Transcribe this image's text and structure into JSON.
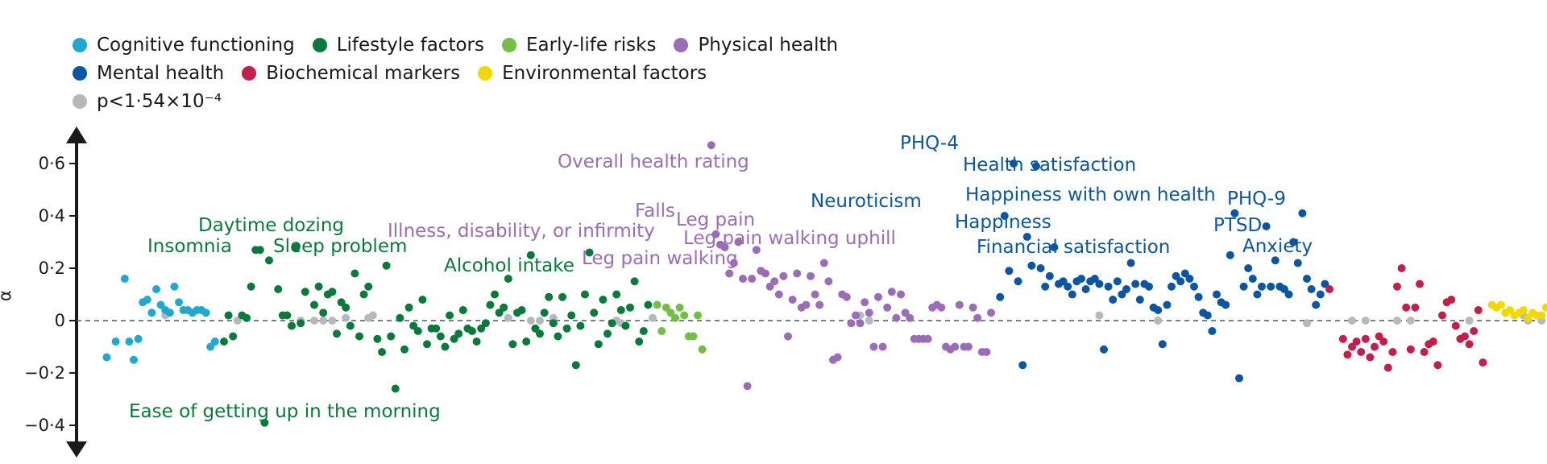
{
  "chart_data": {
    "type": "scatter",
    "title": "",
    "xlabel": "",
    "ylabel": "α",
    "ylim": [
      -0.46,
      0.72
    ],
    "yticks": [
      -0.4,
      -0.2,
      0,
      0.2,
      0.4,
      0.6
    ],
    "ytick_labels": [
      "−0·4",
      "−0·2",
      "0",
      "0·2",
      "0·4",
      "0·6"
    ],
    "reference_line": 0,
    "legend": [
      {
        "name": "Cognitive functioning",
        "color": "#1fa8d0"
      },
      {
        "name": "Lifestyle factors",
        "color": "#0a7a3b"
      },
      {
        "name": "Early-life risks",
        "color": "#72bf44"
      },
      {
        "name": "Physical health",
        "color": "#9b6cb7"
      },
      {
        "name": "Mental health",
        "color": "#0b56a4"
      },
      {
        "name": "Biochemical markers",
        "color": "#c41e4a"
      },
      {
        "name": "Environmental factors",
        "color": "#f0d800"
      },
      {
        "name": "p<1·54×10⁻⁴",
        "color": "#b6b9bc"
      }
    ],
    "series": [
      {
        "name": "Cognitive functioning",
        "color": "#1fa8d0",
        "x": [
          4,
          6,
          8,
          9,
          10,
          11,
          12,
          13,
          14,
          15,
          16,
          17,
          18,
          19,
          20,
          21,
          22,
          23,
          24,
          25,
          26,
          27,
          28
        ],
        "y": [
          -0.14,
          -0.08,
          0.16,
          -0.08,
          -0.15,
          -0.07,
          0.07,
          0.08,
          0.03,
          0.12,
          0.06,
          0.04,
          0.03,
          0.13,
          0.07,
          0.04,
          0.04,
          0.03,
          0.04,
          0.04,
          0.03,
          -0.1,
          -0.08
        ]
      },
      {
        "name": "Lifestyle factors",
        "color": "#0a7a3b",
        "x": [
          30,
          31,
          32,
          34,
          35,
          36,
          37,
          38,
          39,
          40,
          42,
          43,
          44,
          45,
          46,
          47,
          48,
          50,
          51,
          52,
          53,
          54,
          55,
          56,
          57,
          58,
          59,
          60,
          61,
          62,
          64,
          65,
          66,
          67,
          68,
          69,
          70,
          71,
          72,
          73,
          74,
          75,
          76,
          77,
          78,
          79,
          80,
          81,
          82,
          83,
          84,
          85,
          86,
          87,
          88,
          89,
          90,
          91,
          92,
          93,
          94,
          95,
          96,
          97,
          98,
          99,
          100,
          101,
          102,
          103,
          104,
          105,
          106,
          107,
          108,
          109,
          110,
          111,
          112,
          113,
          114,
          115,
          116,
          117,
          118,
          119,
          120,
          121,
          122,
          123,
          124
        ],
        "y": [
          -0.08,
          0.02,
          -0.06,
          0.02,
          0.01,
          0.13,
          0.27,
          0.27,
          -0.39,
          0.23,
          0.12,
          0.02,
          0.02,
          -0.02,
          0.28,
          -0.01,
          0.11,
          0.06,
          0.13,
          0.03,
          0.1,
          0.11,
          -0.05,
          0.07,
          0.05,
          -0.02,
          0.18,
          -0.06,
          0.1,
          0.13,
          -0.07,
          -0.12,
          0.21,
          -0.06,
          -0.26,
          0.01,
          -0.11,
          0.05,
          -0.02,
          -0.04,
          0.08,
          -0.09,
          -0.03,
          -0.03,
          -0.06,
          -0.1,
          0.02,
          -0.07,
          -0.05,
          0.04,
          -0.03,
          -0.04,
          -0.08,
          -0.03,
          -0.01,
          0.06,
          0.1,
          0.03,
          0.05,
          0.16,
          -0.09,
          0.03,
          0.04,
          -0.08,
          0.25,
          -0.03,
          -0.05,
          0.03,
          0.09,
          -0.01,
          -0.06,
          0.09,
          -0.03,
          0.02,
          -0.17,
          -0.02,
          0.1,
          0.26,
          0.03,
          -0.09,
          0.08,
          -0.05,
          -0.01,
          0.1,
          0.04,
          -0.02,
          0.05,
          0.15,
          -0.08,
          -0.04,
          0.06
        ]
      },
      {
        "name": "Early-life risks",
        "color": "#72bf44",
        "x": [
          126,
          127,
          128,
          129,
          130,
          131,
          132,
          133,
          134,
          135,
          136
        ],
        "y": [
          0.06,
          -0.04,
          0.05,
          0.03,
          0.01,
          0.05,
          0.02,
          -0.06,
          -0.06,
          0.02,
          -0.11
        ]
      },
      {
        "name": "Physical health",
        "color": "#9b6cb7",
        "x": [
          138,
          139,
          140,
          141,
          142,
          143,
          144,
          145,
          146,
          147,
          148,
          149,
          150,
          151,
          152,
          153,
          154,
          155,
          156,
          157,
          158,
          159,
          160,
          161,
          162,
          163,
          164,
          165,
          166,
          167,
          168,
          169,
          170,
          171,
          172,
          173,
          174,
          175,
          176,
          177,
          178,
          179,
          180,
          181,
          182,
          183,
          184,
          185,
          186,
          187,
          188,
          189,
          190,
          191,
          192,
          193,
          194,
          195,
          196,
          197,
          198,
          199,
          200
        ],
        "y": [
          0.67,
          0.33,
          0.29,
          0.28,
          0.18,
          0.22,
          0.3,
          0.16,
          -0.25,
          0.16,
          0.27,
          0.19,
          0.18,
          0.13,
          0.15,
          0.1,
          0.17,
          -0.06,
          0.08,
          0.18,
          0.05,
          0.06,
          0.17,
          0.1,
          0.06,
          0.22,
          0.15,
          -0.15,
          -0.14,
          0.1,
          0.09,
          -0.01,
          0.02,
          -0.01,
          0.07,
          0.03,
          -0.1,
          0.09,
          -0.1,
          0.05,
          0.11,
          0.01,
          0.1,
          0.03,
          0.01,
          -0.07,
          -0.07,
          -0.07,
          -0.07,
          0.05,
          0.06,
          0.05,
          -0.1,
          -0.11,
          -0.1,
          0.06,
          -0.1,
          -0.1,
          0.05,
          0.01,
          -0.12,
          -0.12,
          0.03
        ]
      },
      {
        "name": "Mental health",
        "color": "#0b56a4",
        "x": [
          202,
          203,
          204,
          205,
          206,
          207,
          208,
          209,
          210,
          211,
          212,
          213,
          214,
          215,
          216,
          217,
          218,
          219,
          220,
          221,
          222,
          223,
          224,
          225,
          226,
          227,
          228,
          229,
          230,
          231,
          232,
          233,
          234,
          235,
          236,
          237,
          238,
          239,
          240,
          241,
          242,
          243,
          244,
          245,
          246,
          247,
          248,
          249,
          250,
          251,
          252,
          253,
          254,
          255,
          256,
          257,
          258,
          259,
          260,
          261,
          262,
          263,
          264,
          265,
          266,
          267,
          268,
          269,
          270,
          271,
          272,
          273,
          274
        ],
        "y": [
          0.09,
          0.4,
          0.19,
          0.6,
          0.15,
          -0.17,
          0.32,
          0.21,
          0.59,
          0.2,
          0.13,
          0.17,
          0.28,
          0.14,
          0.15,
          0.13,
          0.1,
          0.15,
          0.16,
          0.12,
          0.15,
          0.16,
          0.14,
          -0.11,
          0.13,
          0.08,
          0.15,
          0.1,
          0.12,
          0.22,
          0.14,
          0.08,
          0.14,
          0.13,
          0.05,
          0.04,
          -0.09,
          0.06,
          0.13,
          0.17,
          0.15,
          0.18,
          0.16,
          0.13,
          0.09,
          0.03,
          0.02,
          -0.04,
          0.1,
          0.07,
          0.06,
          0.25,
          0.41,
          -0.22,
          0.13,
          0.2,
          0.16,
          0.1,
          0.13,
          0.36,
          0.13,
          0.23,
          0.13,
          0.12,
          0.1,
          0.3,
          0.22,
          0.41,
          0.16,
          0.12,
          0.06,
          0.1,
          0.14
        ]
      },
      {
        "name": "Biochemical markers",
        "color": "#c41e4a",
        "x": [
          275,
          278,
          279,
          280,
          281,
          282,
          283,
          284,
          285,
          286,
          287,
          288,
          289,
          290,
          291,
          292,
          293,
          294,
          295,
          296,
          297,
          298,
          299,
          300,
          301,
          302,
          303,
          304,
          305,
          306,
          307,
          308,
          309
        ],
        "y": [
          0.12,
          -0.07,
          -0.13,
          -0.1,
          -0.08,
          -0.12,
          -0.07,
          -0.14,
          -0.1,
          -0.06,
          -0.08,
          -0.18,
          -0.12,
          0.13,
          0.2,
          0.05,
          -0.11,
          0.05,
          0.14,
          -0.12,
          -0.09,
          -0.08,
          -0.17,
          0.02,
          0.07,
          0.08,
          -0.02,
          -0.07,
          -0.06,
          -0.09,
          -0.04,
          0.04,
          -0.16
        ]
      },
      {
        "name": "Environmental factors",
        "color": "#f0d800",
        "x": [
          311,
          312,
          313,
          314,
          315,
          316,
          317,
          318,
          319,
          320,
          321,
          322,
          323,
          324,
          325,
          326,
          327,
          328,
          329,
          330,
          331,
          332,
          333,
          334,
          335,
          336,
          337
        ],
        "y": [
          0.06,
          0.05,
          0.06,
          0.03,
          0.04,
          0.02,
          0.03,
          0.04,
          0.01,
          0.03,
          0.02,
          0.02,
          0.05,
          0.05,
          0.04,
          0.03,
          0.02,
          0.01,
          0.01,
          -0.02,
          -0.03,
          -0.01,
          -0.01,
          -0.03,
          -0.02,
          -0.03,
          -0.04
        ]
      },
      {
        "name": "p<1·54×10⁻⁴",
        "color": "#b6b9bc",
        "x": [
          17,
          18,
          33,
          47,
          50,
          52,
          54,
          57,
          62,
          63,
          93,
          98,
          100,
          103,
          117,
          118,
          125,
          171,
          173,
          224,
          237,
          270,
          280,
          283,
          290,
          293,
          306,
          314,
          318,
          319,
          322,
          326,
          330
        ],
        "y": [
          0.02,
          0.03,
          0.0,
          0.0,
          0.0,
          0.0,
          0.0,
          0.01,
          0.01,
          0.02,
          0.01,
          0.0,
          0.0,
          0.01,
          0.0,
          -0.01,
          0.01,
          0.02,
          0.0,
          0.02,
          0.0,
          -0.01,
          0.0,
          0.0,
          0.0,
          0.0,
          0.0,
          0.03,
          0.02,
          0.0,
          0.0,
          0.0,
          0.0
        ]
      }
    ],
    "annotations": [
      {
        "text": "Insomnia",
        "color": "#0a7a3b"
      },
      {
        "text": "Daytime dozing",
        "color": "#0a7a3b"
      },
      {
        "text": "Sleep problem",
        "color": "#0a7a3b"
      },
      {
        "text": "Alcohol intake",
        "color": "#0a7a3b"
      },
      {
        "text": "Ease of getting up in the morning",
        "color": "#0a7a3b"
      },
      {
        "text": "Overall health rating",
        "color": "#9b6cb7"
      },
      {
        "text": "Illness, disability, or infirmity",
        "color": "#9b6cb7"
      },
      {
        "text": "Falls",
        "color": "#9b6cb7"
      },
      {
        "text": "Leg pain",
        "color": "#9b6cb7"
      },
      {
        "text": "Leg pain walking uphill",
        "color": "#9b6cb7"
      },
      {
        "text": "Leg pain walking",
        "color": "#9b6cb7"
      },
      {
        "text": "PHQ-4",
        "color": "#0b56a4"
      },
      {
        "text": "Health satisfaction",
        "color": "#0b56a4"
      },
      {
        "text": "Neuroticism",
        "color": "#0b56a4"
      },
      {
        "text": "Happiness with own health",
        "color": "#0b56a4"
      },
      {
        "text": "Happiness",
        "color": "#0b56a4"
      },
      {
        "text": "Financial satisfaction",
        "color": "#0b56a4"
      },
      {
        "text": "PHQ-9",
        "color": "#0b56a4"
      },
      {
        "text": "PTSD",
        "color": "#0b56a4"
      },
      {
        "text": "Anxiety",
        "color": "#0b56a4"
      }
    ]
  }
}
